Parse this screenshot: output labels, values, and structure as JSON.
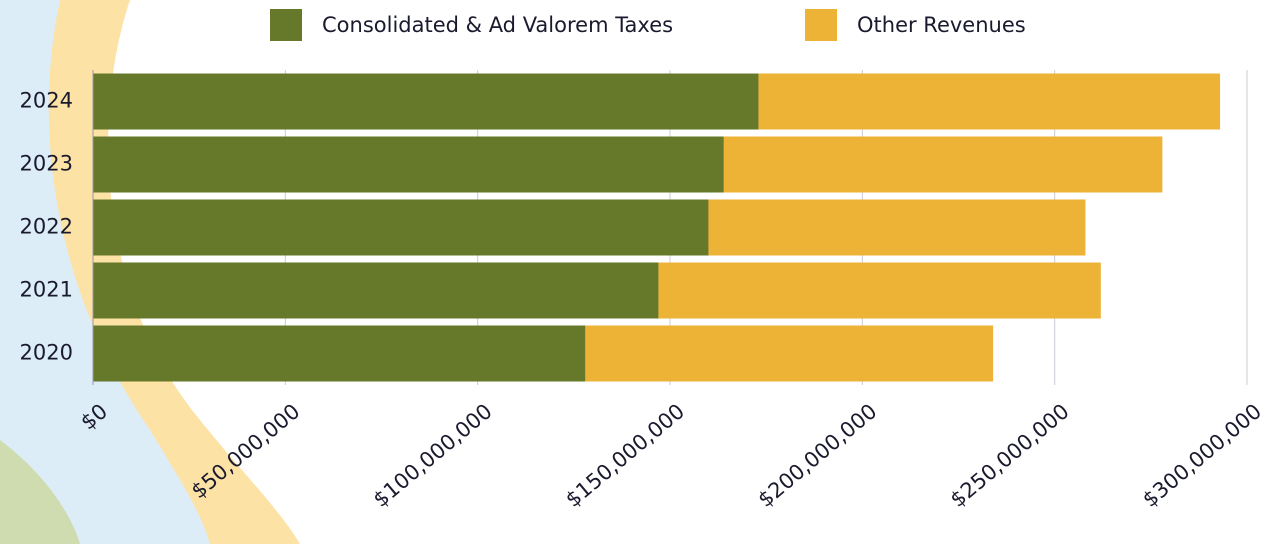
{
  "chart_data": {
    "type": "stacked-bar-horizontal",
    "categories": [
      "2024",
      "2023",
      "2022",
      "2021",
      "2020"
    ],
    "series": [
      {
        "name": "Consolidated & Ad Valorem Taxes",
        "color": "#66782a",
        "values": [
          173000000,
          164000000,
          160000000,
          147000000,
          128000000
        ]
      },
      {
        "name": "Other Revenues",
        "color": "#edb336",
        "values": [
          120000000,
          114000000,
          98000000,
          115000000,
          106000000
        ]
      }
    ],
    "xlim": [
      0,
      300000000
    ],
    "xticks": [
      {
        "value": 0,
        "label": "$0"
      },
      {
        "value": 50000000,
        "label": "$50,000,000"
      },
      {
        "value": 100000000,
        "label": "$100,000,000"
      },
      {
        "value": 150000000,
        "label": "$150,000,000"
      },
      {
        "value": 200000000,
        "label": "$200,000,000"
      },
      {
        "value": 250000000,
        "label": "$250,000,000"
      },
      {
        "value": 300000000,
        "label": "$300,000,000"
      }
    ],
    "grid": true
  }
}
